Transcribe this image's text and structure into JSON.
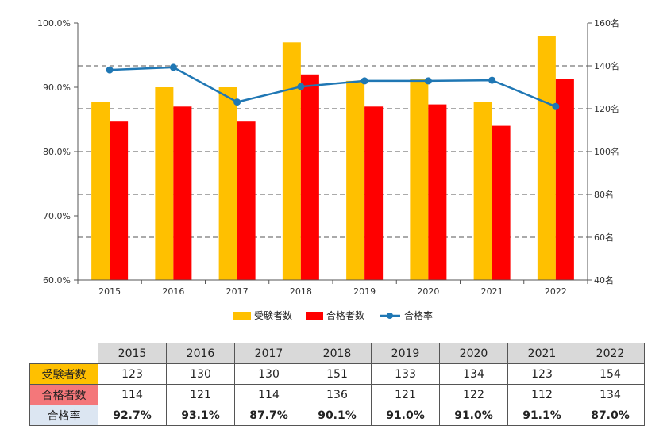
{
  "chart_data": {
    "type": "bar",
    "categories": [
      "2015",
      "2016",
      "2017",
      "2018",
      "2019",
      "2020",
      "2021",
      "2022"
    ],
    "series": [
      {
        "name": "受験者数",
        "type": "bar",
        "axis": "right",
        "color": "#FFC000",
        "values": [
          123,
          130,
          130,
          151,
          133,
          134,
          123,
          154
        ]
      },
      {
        "name": "合格者数",
        "type": "bar",
        "axis": "right",
        "color": "#FF0000",
        "values": [
          114,
          121,
          114,
          136,
          121,
          122,
          112,
          134
        ]
      },
      {
        "name": "合格率",
        "type": "line",
        "axis": "left",
        "color": "#1F77B4",
        "values": [
          92.7,
          93.1,
          87.7,
          90.1,
          91.0,
          91.0,
          91.1,
          87.0
        ]
      }
    ],
    "y_left": {
      "min": 60,
      "max": 100,
      "ticks": [
        "60.0%",
        "70.0%",
        "80.0%",
        "90.0%",
        "100.0%"
      ]
    },
    "y_right": {
      "min": 40,
      "max": 160,
      "ticks": [
        "40名",
        "60名",
        "80名",
        "100名",
        "120名",
        "140名",
        "160名"
      ]
    },
    "grid": "dashed-horizontal",
    "legend": "bottom"
  },
  "table": {
    "years": [
      "2015",
      "2016",
      "2017",
      "2018",
      "2019",
      "2020",
      "2021",
      "2022"
    ],
    "rows": [
      {
        "label": "受験者数",
        "bg": "#FFC000",
        "values": [
          "123",
          "130",
          "130",
          "151",
          "133",
          "134",
          "123",
          "154"
        ]
      },
      {
        "label": "合格者数",
        "bg": "#F4777A",
        "values": [
          "114",
          "121",
          "114",
          "136",
          "121",
          "122",
          "112",
          "134"
        ]
      },
      {
        "label": "合格率",
        "bg": "#DCE6F2",
        "values": [
          "92.7%",
          "93.1%",
          "87.7%",
          "90.1%",
          "91.0%",
          "91.0%",
          "91.1%",
          "87.0%"
        ]
      }
    ]
  }
}
